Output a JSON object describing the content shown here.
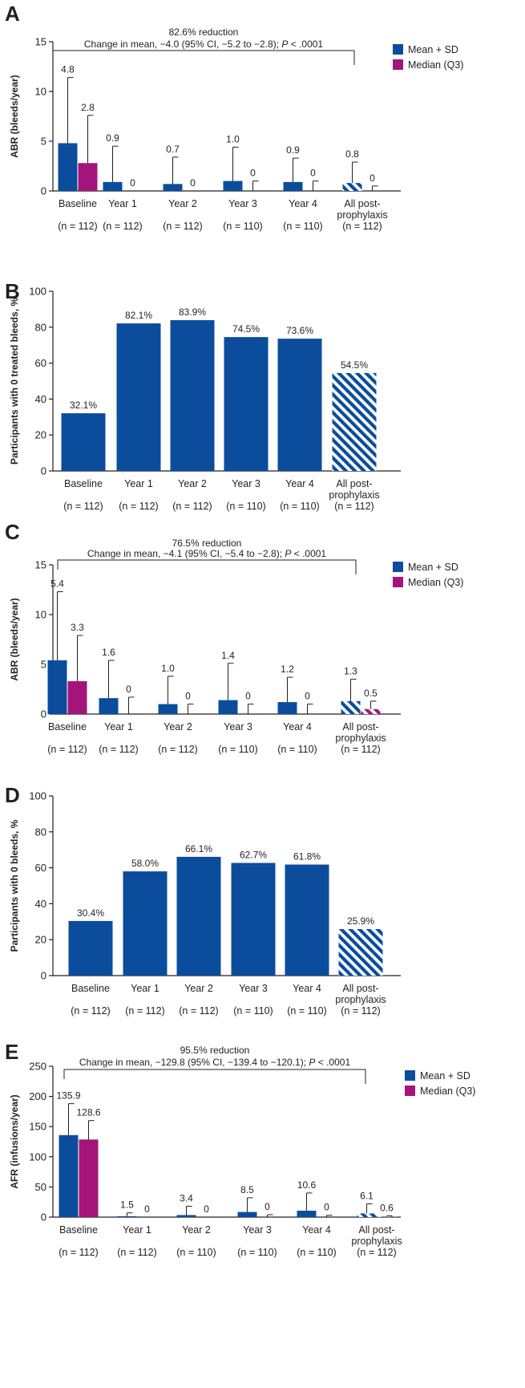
{
  "colors": {
    "mean": "#0b4d9c",
    "median": "#a4147a",
    "axis": "#231f20",
    "hatch_bg": "#ffffff"
  },
  "chart_data": [
    {
      "panel": "A",
      "type": "bar",
      "ylabel": "ABR (bleeds/year)",
      "ylim": [
        0,
        15
      ],
      "yticks": [
        0,
        5,
        10,
        15
      ],
      "categories": [
        "Baseline",
        "Year 1",
        "Year 2",
        "Year 3",
        "Year 4",
        "All post-\nprophylaxis"
      ],
      "ns": [
        "(n = 112)",
        "(n = 112)",
        "(n = 112)",
        "(n = 110)",
        "(n = 110)",
        "(n = 112)"
      ],
      "hatched_last": true,
      "series": [
        {
          "name": "Mean + SD",
          "values": [
            4.8,
            0.9,
            0.7,
            1.0,
            0.9,
            0.8
          ],
          "err": [
            11.4,
            4.5,
            3.4,
            4.4,
            3.3,
            2.9
          ],
          "labels": [
            "4.8",
            "0.9",
            "0.7",
            "1.0",
            "0.9",
            "0.8"
          ]
        },
        {
          "name": "Median (Q3)",
          "values": [
            2.8,
            0,
            0,
            0,
            0,
            0
          ],
          "err": [
            7.6,
            0,
            0,
            1.0,
            1.0,
            0.5
          ],
          "labels": [
            "2.8",
            "0",
            "0",
            "0",
            "0",
            "0"
          ]
        }
      ],
      "annotation": {
        "line1": "82.6% reduction",
        "line2_pre": "Change in mean, −4.0 (95% CI, −5.2 to −2.8); ",
        "p_italic": "P",
        "line2_post": " < .0001"
      }
    },
    {
      "panel": "B",
      "type": "bar",
      "ylabel": "Participants with 0 treated bleeds, %",
      "ylim": [
        0,
        100
      ],
      "yticks": [
        0,
        20,
        40,
        60,
        80,
        100
      ],
      "categories": [
        "Baseline",
        "Year 1",
        "Year 2",
        "Year 3",
        "Year 4",
        "All post-\nprophylaxis"
      ],
      "ns": [
        "(n = 112)",
        "(n = 112)",
        "(n = 112)",
        "(n = 110)",
        "(n = 110)",
        "(n = 112)"
      ],
      "hatched_last": true,
      "series": [
        {
          "name": "Participants",
          "values": [
            32.1,
            82.1,
            83.9,
            74.5,
            73.6,
            54.5
          ],
          "labels": [
            "32.1%",
            "82.1%",
            "83.9%",
            "74.5%",
            "73.6%",
            "54.5%"
          ]
        }
      ]
    },
    {
      "panel": "C",
      "type": "bar",
      "ylabel": "ABR (bleeds/year)",
      "ylim": [
        0,
        15
      ],
      "yticks": [
        0,
        5,
        10,
        15
      ],
      "categories": [
        "Baseline",
        "Year 1",
        "Year 2",
        "Year 3",
        "Year 4",
        "All post-\nprophylaxis"
      ],
      "ns": [
        "(n = 112)",
        "(n = 112)",
        "(n = 112)",
        "(n = 110)",
        "(n = 110)",
        "(n = 112)"
      ],
      "hatched_last": true,
      "series": [
        {
          "name": "Mean + SD",
          "values": [
            5.4,
            1.6,
            1.0,
            1.4,
            1.2,
            1.3
          ],
          "err": [
            12.3,
            5.4,
            3.8,
            5.1,
            3.7,
            3.5
          ],
          "labels": [
            "5.4",
            "1.6",
            "1.0",
            "1.4",
            "1.2",
            "1.3"
          ]
        },
        {
          "name": "Median (Q3)",
          "values": [
            3.3,
            0,
            0,
            0,
            0,
            0.5
          ],
          "err": [
            7.9,
            1.7,
            1.0,
            1.0,
            1.0,
            1.3
          ],
          "labels": [
            "3.3",
            "0",
            "0",
            "0",
            "0",
            "0.5"
          ]
        }
      ],
      "annotation": {
        "line1": "76.5% reduction",
        "line2_pre": "Change in mean, −4.1 (95% CI, −5.4 to −2.8); ",
        "p_italic": "P",
        "line2_post": " < .0001"
      }
    },
    {
      "panel": "D",
      "type": "bar",
      "ylabel": "Participants with 0 bleeds, %",
      "ylim": [
        0,
        100
      ],
      "yticks": [
        0,
        20,
        40,
        60,
        80,
        100
      ],
      "categories": [
        "Baseline",
        "Year 1",
        "Year 2",
        "Year 3",
        "Year 4",
        "All post-\nprophylaxis"
      ],
      "ns": [
        "(n = 112)",
        "(n = 112)",
        "(n = 112)",
        "(n = 110)",
        "(n = 110)",
        "(n = 112)"
      ],
      "hatched_last": true,
      "series": [
        {
          "name": "Participants",
          "values": [
            30.4,
            58.0,
            66.1,
            62.7,
            61.8,
            25.9
          ],
          "labels": [
            "30.4%",
            "58.0%",
            "66.1%",
            "62.7%",
            "61.8%",
            "25.9%"
          ]
        }
      ]
    },
    {
      "panel": "E",
      "type": "bar",
      "ylabel": "AFR (infusions/year)",
      "ylim": [
        0,
        250
      ],
      "yticks": [
        0,
        50,
        100,
        150,
        200,
        250
      ],
      "categories": [
        "Baseline",
        "Year 1",
        "Year 2",
        "Year 3",
        "Year 4",
        "All post-\nprophylaxis"
      ],
      "ns": [
        "(n = 112)",
        "(n = 112)",
        "(n = 110)",
        "(n = 110)",
        "(n = 110)",
        "(n = 112)"
      ],
      "hatched_last": true,
      "series": [
        {
          "name": "Mean + SD",
          "values": [
            135.9,
            1.5,
            3.4,
            8.5,
            10.6,
            6.1
          ],
          "err": [
            188,
            7,
            18,
            32,
            40,
            22
          ],
          "labels": [
            "135.9",
            "1.5",
            "3.4",
            "8.5",
            "10.6",
            "6.1"
          ]
        },
        {
          "name": "Median (Q3)",
          "values": [
            128.6,
            0,
            0,
            0,
            0,
            0.6
          ],
          "err": [
            160,
            0,
            0,
            4,
            3,
            2
          ],
          "labels": [
            "128.6",
            "0",
            "0",
            "0",
            "0",
            "0.6"
          ]
        }
      ],
      "annotation": {
        "line1": "95.5% reduction",
        "line2_pre": "Change in mean, −129.8 (95% CI, −139.4 to −120.1); ",
        "p_italic": "P",
        "line2_post": " < .0001"
      }
    }
  ]
}
